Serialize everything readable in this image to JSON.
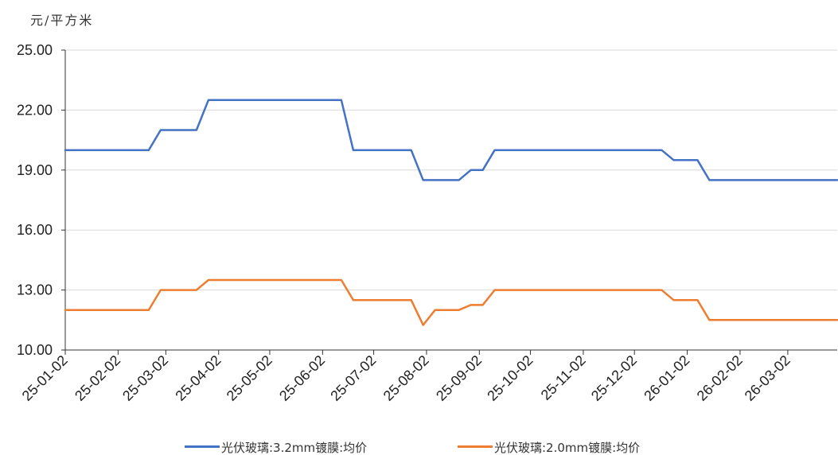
{
  "chart_data": {
    "type": "line",
    "ylabel": "元/平方米",
    "ylim": [
      10,
      25
    ],
    "yticks": [
      "25.00",
      "22.00",
      "19.00",
      "16.00",
      "13.00",
      "10.00"
    ],
    "ytick_values": [
      25,
      22,
      19,
      16,
      13,
      10
    ],
    "x_start": "2025-01-02",
    "x_end": "2026-03-31",
    "xtick_labels": [
      "25-01-02",
      "25-02-02",
      "25-03-02",
      "25-04-02",
      "25-05-02",
      "25-06-02",
      "25-07-02",
      "25-08-02",
      "25-09-02",
      "25-10-02",
      "25-11-02",
      "25-12-02",
      "26-01-02",
      "26-02-02",
      "26-03-02"
    ],
    "xtick_dates": [
      "2025-01-02",
      "2025-02-02",
      "2025-03-02",
      "2025-04-02",
      "2025-05-02",
      "2025-06-02",
      "2025-07-02",
      "2025-08-02",
      "2025-09-02",
      "2025-10-02",
      "2025-11-02",
      "2025-12-02",
      "2026-01-02",
      "2026-02-02",
      "2026-03-02"
    ],
    "grid": "horizontal",
    "legend_position": "bottom",
    "series": [
      {
        "name": "光伏玻璃:3.2mm镀膜:均价",
        "color": "#4472C4",
        "points": [
          [
            "2025-01-02",
            20.0
          ],
          [
            "2025-02-20",
            20.0
          ],
          [
            "2025-02-27",
            21.0
          ],
          [
            "2025-03-20",
            21.0
          ],
          [
            "2025-03-27",
            22.5
          ],
          [
            "2025-06-13",
            22.5
          ],
          [
            "2025-06-20",
            20.0
          ],
          [
            "2025-07-24",
            20.0
          ],
          [
            "2025-07-31",
            18.5
          ],
          [
            "2025-08-21",
            18.5
          ],
          [
            "2025-08-28",
            19.0
          ],
          [
            "2025-09-04",
            19.0
          ],
          [
            "2025-09-11",
            20.0
          ],
          [
            "2025-12-18",
            20.0
          ],
          [
            "2025-12-25",
            19.5
          ],
          [
            "2026-01-08",
            19.5
          ],
          [
            "2026-01-15",
            18.5
          ],
          [
            "2026-03-31",
            18.5
          ]
        ]
      },
      {
        "name": "光伏玻璃:2.0mm镀膜:均价",
        "color": "#ED7D31",
        "points": [
          [
            "2025-01-02",
            12.0
          ],
          [
            "2025-02-20",
            12.0
          ],
          [
            "2025-02-27",
            13.0
          ],
          [
            "2025-03-20",
            13.0
          ],
          [
            "2025-03-27",
            13.5
          ],
          [
            "2025-06-13",
            13.5
          ],
          [
            "2025-06-20",
            12.5
          ],
          [
            "2025-07-24",
            12.5
          ],
          [
            "2025-07-31",
            11.25
          ],
          [
            "2025-08-07",
            12.0
          ],
          [
            "2025-08-21",
            12.0
          ],
          [
            "2025-08-28",
            12.25
          ],
          [
            "2025-09-04",
            12.25
          ],
          [
            "2025-09-11",
            13.0
          ],
          [
            "2025-12-18",
            13.0
          ],
          [
            "2025-12-25",
            12.5
          ],
          [
            "2026-01-08",
            12.5
          ],
          [
            "2026-01-15",
            11.5
          ],
          [
            "2026-03-31",
            11.5
          ]
        ]
      }
    ]
  }
}
